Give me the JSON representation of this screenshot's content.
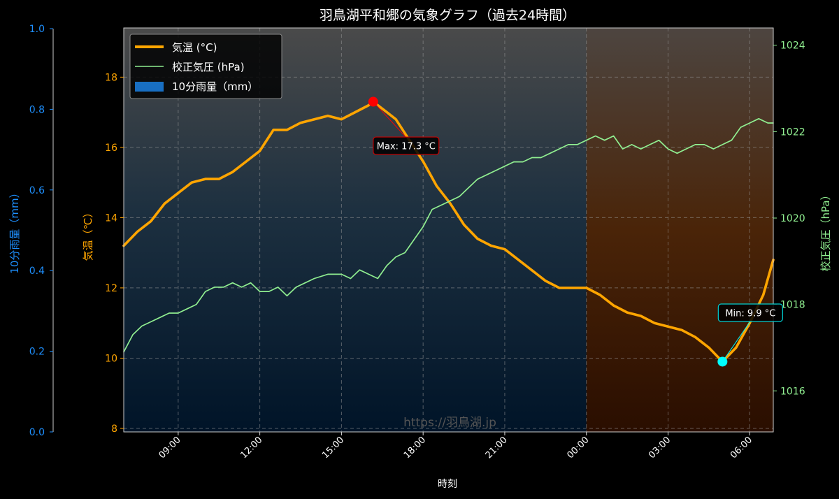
{
  "chart_data": {
    "type": "line",
    "title": "羽鳥湖平和郷の気象グラフ（過去24時間）",
    "xlabel": "時刻",
    "x_ticks": [
      "09:00",
      "12:00",
      "15:00",
      "18:00",
      "21:00",
      "00:00",
      "03:00",
      "06:00"
    ],
    "x_range": [
      "07:00",
      "06:52"
    ],
    "night_shade_from": "00:00",
    "watermark": "https://羽鳥湖.jp",
    "grid": true,
    "legend_position": "top-left",
    "axes": {
      "rain": {
        "label": "10分雨量（mm）",
        "range": [
          0,
          1.0
        ],
        "ticks": [
          "0.0",
          "0.2",
          "0.4",
          "0.6",
          "0.8",
          "1.0"
        ],
        "color": "#1E90FF",
        "position": "left-outer"
      },
      "temp": {
        "label": "気温（℃）",
        "range": [
          7.9,
          19.4
        ],
        "ticks": [
          "8",
          "10",
          "12",
          "14",
          "16",
          "18"
        ],
        "color": "#FFA500",
        "position": "left"
      },
      "pressure": {
        "label": "校正気圧（hPa）",
        "range": [
          1015.05,
          1024.4
        ],
        "ticks": [
          "1016",
          "1018",
          "1020",
          "1022",
          "1024"
        ],
        "color": "#90EE90",
        "position": "right"
      }
    },
    "legend": [
      "気温 (°C)",
      "校正気圧 (hPa)",
      "10分雨量（mm）"
    ],
    "series": [
      {
        "name": "気温 (°C)",
        "axis": "temp",
        "color": "#FFA500",
        "style": "thick-line",
        "points": [
          [
            "07:00",
            13.2
          ],
          [
            "07:30",
            13.6
          ],
          [
            "08:00",
            13.9
          ],
          [
            "08:30",
            14.4
          ],
          [
            "09:00",
            14.7
          ],
          [
            "09:30",
            15.0
          ],
          [
            "10:00",
            15.1
          ],
          [
            "10:30",
            15.1
          ],
          [
            "11:00",
            15.3
          ],
          [
            "11:30",
            15.6
          ],
          [
            "12:00",
            15.9
          ],
          [
            "12:30",
            16.5
          ],
          [
            "13:00",
            16.5
          ],
          [
            "13:30",
            16.7
          ],
          [
            "14:00",
            16.8
          ],
          [
            "14:30",
            16.9
          ],
          [
            "15:00",
            16.8
          ],
          [
            "15:30",
            17.0
          ],
          [
            "16:00",
            17.2
          ],
          [
            "16:10",
            17.3
          ],
          [
            "16:40",
            17.0
          ],
          [
            "17:00",
            16.8
          ],
          [
            "17:30",
            16.2
          ],
          [
            "18:00",
            15.6
          ],
          [
            "18:30",
            14.9
          ],
          [
            "19:00",
            14.4
          ],
          [
            "19:30",
            13.8
          ],
          [
            "20:00",
            13.4
          ],
          [
            "20:30",
            13.2
          ],
          [
            "21:00",
            13.1
          ],
          [
            "21:30",
            12.8
          ],
          [
            "22:00",
            12.5
          ],
          [
            "22:30",
            12.2
          ],
          [
            "23:00",
            12.0
          ],
          [
            "23:30",
            12.0
          ],
          [
            "00:00",
            12.0
          ],
          [
            "00:30",
            11.8
          ],
          [
            "01:00",
            11.5
          ],
          [
            "01:30",
            11.3
          ],
          [
            "02:00",
            11.2
          ],
          [
            "02:30",
            11.0
          ],
          [
            "03:00",
            10.9
          ],
          [
            "03:30",
            10.8
          ],
          [
            "04:00",
            10.6
          ],
          [
            "04:30",
            10.3
          ],
          [
            "05:00",
            9.9
          ],
          [
            "05:30",
            10.3
          ],
          [
            "06:00",
            11.0
          ],
          [
            "06:30",
            11.8
          ],
          [
            "06:52",
            12.8
          ]
        ]
      },
      {
        "name": "校正気圧 (hPa)",
        "axis": "pressure",
        "color": "#90EE90",
        "style": "thin-line",
        "points": [
          [
            "07:00",
            1016.9
          ],
          [
            "07:20",
            1017.3
          ],
          [
            "07:40",
            1017.5
          ],
          [
            "08:00",
            1017.6
          ],
          [
            "08:20",
            1017.7
          ],
          [
            "08:40",
            1017.8
          ],
          [
            "09:00",
            1017.8
          ],
          [
            "09:20",
            1017.9
          ],
          [
            "09:40",
            1018.0
          ],
          [
            "10:00",
            1018.3
          ],
          [
            "10:20",
            1018.4
          ],
          [
            "10:40",
            1018.4
          ],
          [
            "11:00",
            1018.5
          ],
          [
            "11:20",
            1018.4
          ],
          [
            "11:40",
            1018.5
          ],
          [
            "12:00",
            1018.3
          ],
          [
            "12:20",
            1018.3
          ],
          [
            "12:40",
            1018.4
          ],
          [
            "13:00",
            1018.2
          ],
          [
            "13:20",
            1018.4
          ],
          [
            "13:40",
            1018.5
          ],
          [
            "14:00",
            1018.6
          ],
          [
            "14:30",
            1018.7
          ],
          [
            "15:00",
            1018.7
          ],
          [
            "15:20",
            1018.6
          ],
          [
            "15:40",
            1018.8
          ],
          [
            "16:00",
            1018.7
          ],
          [
            "16:20",
            1018.6
          ],
          [
            "16:40",
            1018.9
          ],
          [
            "17:00",
            1019.1
          ],
          [
            "17:20",
            1019.2
          ],
          [
            "17:40",
            1019.5
          ],
          [
            "18:00",
            1019.8
          ],
          [
            "18:20",
            1020.2
          ],
          [
            "18:40",
            1020.3
          ],
          [
            "19:00",
            1020.4
          ],
          [
            "19:20",
            1020.5
          ],
          [
            "19:40",
            1020.7
          ],
          [
            "20:00",
            1020.9
          ],
          [
            "20:20",
            1021.0
          ],
          [
            "20:40",
            1021.1
          ],
          [
            "21:00",
            1021.2
          ],
          [
            "21:20",
            1021.3
          ],
          [
            "21:40",
            1021.3
          ],
          [
            "22:00",
            1021.4
          ],
          [
            "22:20",
            1021.4
          ],
          [
            "22:40",
            1021.5
          ],
          [
            "23:00",
            1021.6
          ],
          [
            "23:20",
            1021.7
          ],
          [
            "23:40",
            1021.7
          ],
          [
            "00:00",
            1021.8
          ],
          [
            "00:20",
            1021.9
          ],
          [
            "00:40",
            1021.8
          ],
          [
            "01:00",
            1021.9
          ],
          [
            "01:20",
            1021.6
          ],
          [
            "01:40",
            1021.7
          ],
          [
            "02:00",
            1021.6
          ],
          [
            "02:20",
            1021.7
          ],
          [
            "02:40",
            1021.8
          ],
          [
            "03:00",
            1021.6
          ],
          [
            "03:20",
            1021.5
          ],
          [
            "03:40",
            1021.6
          ],
          [
            "04:00",
            1021.7
          ],
          [
            "04:20",
            1021.7
          ],
          [
            "04:40",
            1021.6
          ],
          [
            "05:00",
            1021.7
          ],
          [
            "05:20",
            1021.8
          ],
          [
            "05:40",
            1022.1
          ],
          [
            "06:00",
            1022.2
          ],
          [
            "06:20",
            1022.3
          ],
          [
            "06:40",
            1022.2
          ],
          [
            "06:52",
            1022.2
          ]
        ]
      },
      {
        "name": "10分雨量（mm）",
        "axis": "rain",
        "color": "#1E90FF",
        "style": "bar",
        "values": []
      }
    ],
    "annotations": [
      {
        "label": "Max: 17.3 °C",
        "x": "16:10",
        "y": 17.3,
        "marker_color": "#FF0000",
        "box_border": "#CC0000"
      },
      {
        "label": "Min: 9.9 °C",
        "x": "05:00",
        "y": 9.9,
        "marker_color": "#00FFFF",
        "box_border": "#00CED1"
      }
    ]
  }
}
